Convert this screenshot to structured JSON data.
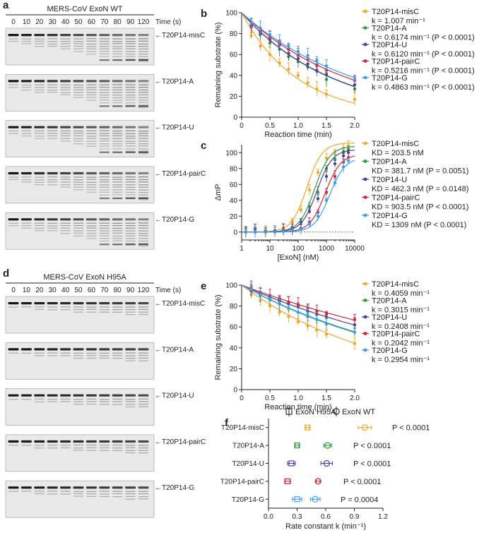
{
  "colors": {
    "misC": "#f5a623",
    "A": "#2e9e3e",
    "U": "#4b3f9a",
    "pairC": "#cc2936",
    "G": "#3a9ee8"
  },
  "panels": {
    "a": {
      "label": "a",
      "title": "MERS-CoV ExoN WT",
      "time_unit": "Time (s)",
      "times": [
        "0",
        "10",
        "20",
        "30",
        "40",
        "50",
        "60",
        "70",
        "80",
        "90",
        "120"
      ],
      "substrates": [
        "T20P14-misC",
        "T20P14-A",
        "T20P14-U",
        "T20P14-pairC",
        "T20P14-G"
      ]
    },
    "d": {
      "label": "d",
      "title": "MERS-CoV ExoN H95A",
      "time_unit": "Time (s)",
      "times": [
        "0",
        "10",
        "20",
        "30",
        "40",
        "50",
        "60",
        "70",
        "80",
        "90",
        "120"
      ],
      "substrates": [
        "T20P14-misC",
        "T20P14-A",
        "T20P14-U",
        "T20P14-pairC",
        "T20P14-G"
      ]
    }
  },
  "chart_data": [
    {
      "panel": "b",
      "type": "scatter",
      "xlabel": "Reaction time (min)",
      "ylabel": "Remaining substrate (%)",
      "xlim": [
        0,
        2.0
      ],
      "ylim": [
        0,
        100
      ],
      "xticks": [
        "0",
        "0.5",
        "1.0",
        "1.5",
        "2.0"
      ],
      "yticks": [
        "0",
        "20",
        "40",
        "60",
        "80",
        "100"
      ],
      "x": [
        0.17,
        0.33,
        0.5,
        0.67,
        0.83,
        1.0,
        1.17,
        1.33,
        1.5,
        2.0
      ],
      "series": [
        {
          "name": "T20P14-misC",
          "key": "misC",
          "k": 1.007,
          "stat_text": "k = 1.007 min⁻¹",
          "values": [
            78,
            68,
            60,
            52,
            46,
            40,
            33,
            27,
            22,
            17
          ]
        },
        {
          "name": "T20P14-A",
          "key": "A",
          "k": 0.6174,
          "stat_text": "k = 0.6174 min⁻¹ (P < 0.0001)",
          "values": [
            86,
            79,
            71,
            65,
            58,
            53,
            48,
            44,
            36,
            27
          ]
        },
        {
          "name": "T20P14-U",
          "key": "U",
          "k": 0.612,
          "stat_text": "k = 0.6120 min⁻¹ (P < 0.0001)",
          "values": [
            88,
            80,
            74,
            69,
            61,
            56,
            51,
            45,
            41,
            31
          ]
        },
        {
          "name": "T20P14-pairC",
          "key": "pairC",
          "k": 0.5216,
          "stat_text": "k = 0.5216 min⁻¹ (P < 0.0001)",
          "values": [
            87,
            82,
            76,
            71,
            65,
            59,
            55,
            50,
            45,
            35
          ]
        },
        {
          "name": "T20P14-G",
          "key": "G",
          "k": 0.4863,
          "stat_text": "k = 0.4863 min⁻¹ (P < 0.0001)",
          "values": [
            90,
            85,
            79,
            73,
            68,
            63,
            59,
            54,
            49,
            36
          ]
        }
      ]
    },
    {
      "panel": "c",
      "type": "scatter",
      "xlabel": "[ExoN] (nM)",
      "ylabel": "ΔmP",
      "xscale": "log",
      "xlim": [
        1,
        10000
      ],
      "ylim": [
        -10,
        110
      ],
      "xticks": [
        "1",
        "10",
        "100",
        "1000",
        "10000"
      ],
      "yticks": [
        "0",
        "20",
        "40",
        "60",
        "80",
        "100"
      ],
      "x": [
        1.4,
        3,
        7,
        15,
        30,
        62,
        125,
        250,
        500,
        1000,
        2000,
        4000,
        6000
      ],
      "series": [
        {
          "name": "T20P14-misC",
          "key": "misC",
          "kd": 203.5,
          "stat_text": "KD = 203.5 nM",
          "values": [
            0,
            1,
            1,
            2,
            5,
            14,
            28,
            53,
            75,
            93,
            101,
            106,
            108
          ]
        },
        {
          "name": "T20P14-A",
          "key": "A",
          "kd": 381.7,
          "stat_text": "KD = 381.7 nM (P = 0.0051)",
          "values": [
            0,
            0,
            1,
            1,
            2,
            6,
            13,
            32,
            50,
            80,
            92,
            100,
            104
          ]
        },
        {
          "name": "T20P14-U",
          "key": "U",
          "kd": 462.3,
          "stat_text": "KD = 462.3 nM (P = 0.0148)",
          "values": [
            0,
            4,
            1,
            1,
            3,
            6,
            11,
            26,
            42,
            70,
            86,
            96,
            100
          ]
        },
        {
          "name": "T20P14-pairC",
          "key": "pairC",
          "kd": 903.5,
          "stat_text": "KD = 903.5 nM (P < 0.0001)",
          "values": [
            0,
            0,
            0,
            0,
            1,
            3,
            5,
            12,
            25,
            50,
            70,
            88,
            94
          ]
        },
        {
          "name": "T20P14-G",
          "key": "G",
          "kd": 1309,
          "stat_text": "KD = 1309 nM (P < 0.0001)",
          "values": [
            0,
            0,
            0,
            0,
            1,
            2,
            4,
            10,
            20,
            40,
            62,
            82,
            90
          ]
        }
      ]
    },
    {
      "panel": "e",
      "type": "scatter",
      "xlabel": "Reaction time (min)",
      "ylabel": "Remaining substrate (%)",
      "xlim": [
        0,
        2.0
      ],
      "ylim": [
        0,
        100
      ],
      "xticks": [
        "0",
        "0.5",
        "1.0",
        "1.5",
        "2.0"
      ],
      "yticks": [
        "0",
        "20",
        "40",
        "60",
        "80",
        "100"
      ],
      "x": [
        0.17,
        0.33,
        0.5,
        0.67,
        0.83,
        1.0,
        1.17,
        1.33,
        1.5,
        2.0
      ],
      "series": [
        {
          "name": "T20P14-misC",
          "key": "misC",
          "k": 0.4059,
          "stat_text": "k = 0.4059 min⁻¹",
          "values": [
            91,
            85,
            80,
            74,
            70,
            65,
            61,
            57,
            53,
            44
          ]
        },
        {
          "name": "T20P14-A",
          "key": "A",
          "k": 0.3015,
          "stat_text": "k = 0.3015 min⁻¹",
          "values": [
            94,
            90,
            86,
            82,
            78,
            74,
            70,
            67,
            63,
            55
          ]
        },
        {
          "name": "T20P14-U",
          "key": "U",
          "k": 0.2408,
          "stat_text": "k = 0.2408 min⁻¹",
          "values": [
            95,
            92,
            88,
            85,
            82,
            79,
            75,
            72,
            69,
            62
          ]
        },
        {
          "name": "T20P14-pairC",
          "key": "pairC",
          "k": 0.2042,
          "stat_text": "k = 0.2042 min⁻¹",
          "values": [
            97,
            93,
            90,
            87,
            84,
            81,
            78,
            75,
            72,
            67
          ]
        },
        {
          "name": "T20P14-G",
          "key": "G",
          "k": 0.2954,
          "stat_text": "k = 0.2954 min⁻¹",
          "values": [
            96,
            91,
            87,
            82,
            78,
            74,
            71,
            67,
            63,
            55
          ]
        }
      ]
    },
    {
      "panel": "f",
      "type": "scatter",
      "xlabel": "Rate constant k (min⁻¹)",
      "xlim": [
        0,
        1.2
      ],
      "xticks": [
        "0.0",
        "0.3",
        "0.6",
        "0.9",
        "1.2"
      ],
      "legend": [
        "ExoN H95A",
        "ExoN WT"
      ],
      "categories": [
        "T20P14-misC",
        "T20P14-A",
        "T20P14-U",
        "T20P14-pairC",
        "T20P14-G"
      ],
      "keys": [
        "misC",
        "A",
        "U",
        "pairC",
        "G"
      ],
      "series": [
        {
          "name": "ExoN H95A",
          "marker": "square",
          "values": [
            0.41,
            0.3,
            0.24,
            0.2,
            0.3
          ],
          "errors": [
            0.02,
            0.02,
            0.04,
            0.03,
            0.05
          ]
        },
        {
          "name": "ExoN WT",
          "marker": "circle",
          "values": [
            1.01,
            0.62,
            0.61,
            0.52,
            0.49
          ],
          "errors": [
            0.07,
            0.04,
            0.06,
            0.02,
            0.05
          ]
        }
      ],
      "pvalues": [
        "P < 0.0001",
        "P < 0.0001",
        "P < 0.0001",
        "P < 0.0001",
        "P = 0.0004"
      ]
    }
  ]
}
